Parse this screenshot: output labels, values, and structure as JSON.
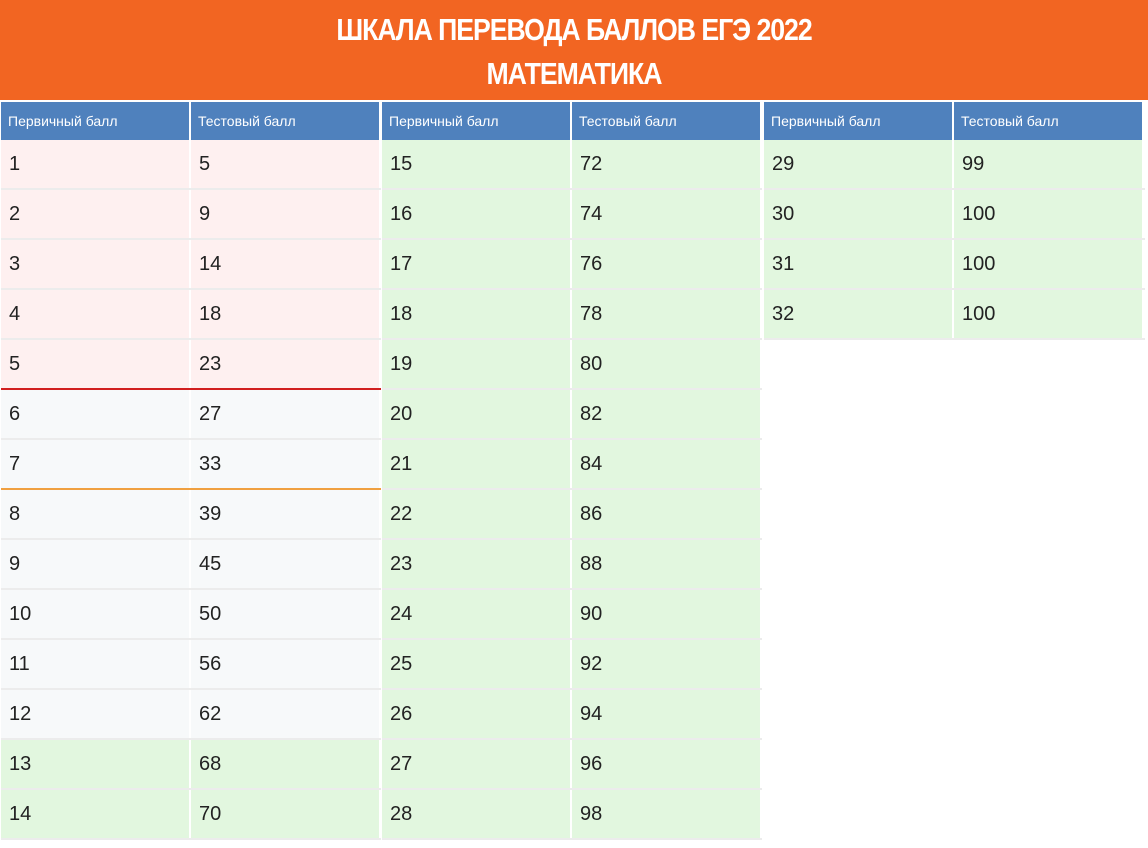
{
  "banner": {
    "line1": "ШКАЛА ПЕРЕВОДА БАЛЛОВ ЕГЭ 2022",
    "line2": "МАТЕМАТИКА"
  },
  "colors": {
    "banner": "#f26522",
    "header": "#4f81bd",
    "below_min": "#fef0f0",
    "neutral": "#f7f9fa",
    "high": "#e2f7df",
    "threshold_red": "#d11f1f",
    "threshold_orange": "#f0a040"
  },
  "tables": [
    {
      "headers": [
        "Первичный балл",
        "Тестовый балл"
      ],
      "rows": [
        {
          "primary": "1",
          "test": "5",
          "tone": "pink"
        },
        {
          "primary": "2",
          "test": "9",
          "tone": "pink"
        },
        {
          "primary": "3",
          "test": "14",
          "tone": "pink"
        },
        {
          "primary": "4",
          "test": "18",
          "tone": "pink"
        },
        {
          "primary": "5",
          "test": "23",
          "tone": "pink",
          "line": "red"
        },
        {
          "primary": "6",
          "test": "27",
          "tone": "white"
        },
        {
          "primary": "7",
          "test": "33",
          "tone": "white",
          "line": "orange"
        },
        {
          "primary": "8",
          "test": "39",
          "tone": "white"
        },
        {
          "primary": "9",
          "test": "45",
          "tone": "white"
        },
        {
          "primary": "10",
          "test": "50",
          "tone": "white"
        },
        {
          "primary": "11",
          "test": "56",
          "tone": "white"
        },
        {
          "primary": "12",
          "test": "62",
          "tone": "white"
        },
        {
          "primary": "13",
          "test": "68",
          "tone": "green"
        },
        {
          "primary": "14",
          "test": "70",
          "tone": "green"
        }
      ]
    },
    {
      "headers": [
        "Первичный балл",
        "Тестовый балл"
      ],
      "rows": [
        {
          "primary": "15",
          "test": "72",
          "tone": "green"
        },
        {
          "primary": "16",
          "test": "74",
          "tone": "green"
        },
        {
          "primary": "17",
          "test": "76",
          "tone": "green"
        },
        {
          "primary": "18",
          "test": "78",
          "tone": "green"
        },
        {
          "primary": "19",
          "test": "80",
          "tone": "green"
        },
        {
          "primary": "20",
          "test": "82",
          "tone": "green"
        },
        {
          "primary": "21",
          "test": "84",
          "tone": "green"
        },
        {
          "primary": "22",
          "test": "86",
          "tone": "green"
        },
        {
          "primary": "23",
          "test": "88",
          "tone": "green"
        },
        {
          "primary": "24",
          "test": "90",
          "tone": "green"
        },
        {
          "primary": "25",
          "test": "92",
          "tone": "green"
        },
        {
          "primary": "26",
          "test": "94",
          "tone": "green"
        },
        {
          "primary": "27",
          "test": "96",
          "tone": "green"
        },
        {
          "primary": "28",
          "test": "98",
          "tone": "green"
        }
      ]
    },
    {
      "headers": [
        "Первичный балл",
        "Тестовый балл"
      ],
      "rows": [
        {
          "primary": "29",
          "test": "99",
          "tone": "green"
        },
        {
          "primary": "30",
          "test": "100",
          "tone": "green"
        },
        {
          "primary": "31",
          "test": "100",
          "tone": "green"
        },
        {
          "primary": "32",
          "test": "100",
          "tone": "green"
        }
      ]
    }
  ]
}
